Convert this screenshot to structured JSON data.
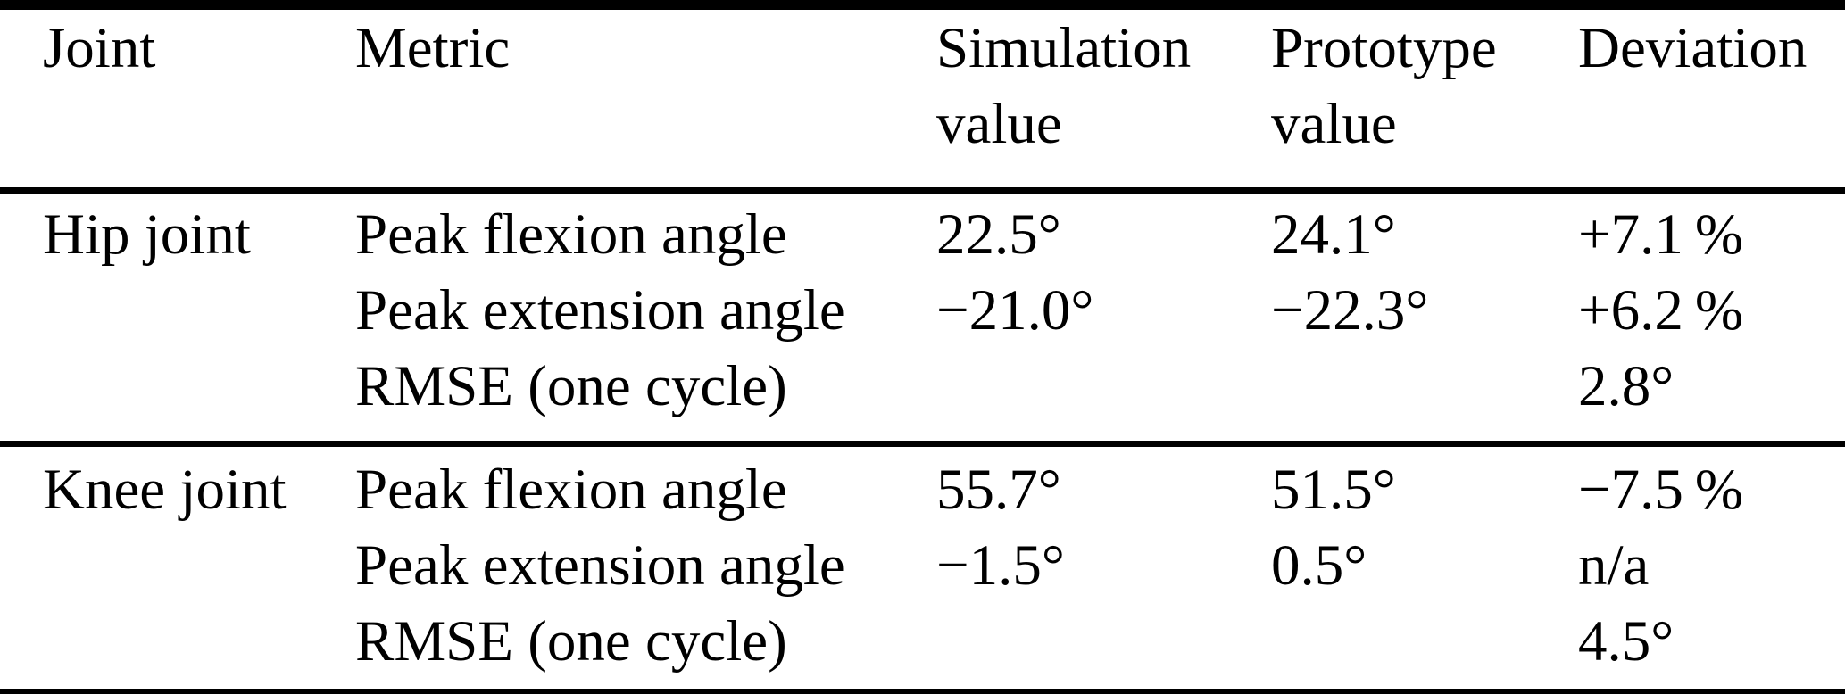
{
  "table": {
    "colors": {
      "background": "#ffffff",
      "text": "#000000",
      "rule": "#000000"
    },
    "columns": {
      "joint": "Joint",
      "metric": "Metric",
      "simulation": "Simulation value",
      "prototype": "Prototype value",
      "deviation": "Deviation"
    },
    "sections": [
      {
        "joint": "Hip joint",
        "rows": [
          {
            "metric": "Peak flexion angle",
            "simulation": "22.5°",
            "prototype": "24.1°",
            "deviation": "+7.1 %"
          },
          {
            "metric": "Peak extension angle",
            "simulation": "−21.0°",
            "prototype": "−22.3°",
            "deviation": "+6.2 %"
          },
          {
            "metric": "RMSE (one cycle)",
            "simulation": "",
            "prototype": "",
            "deviation": "2.8°"
          }
        ]
      },
      {
        "joint": "Knee joint",
        "rows": [
          {
            "metric": "Peak flexion angle",
            "simulation": "55.7°",
            "prototype": "51.5°",
            "deviation": "−7.5 %"
          },
          {
            "metric": "Peak extension angle",
            "simulation": "−1.5°",
            "prototype": "0.5°",
            "deviation": "n/a"
          },
          {
            "metric": "RMSE (one cycle)",
            "simulation": "",
            "prototype": "",
            "deviation": "4.5°"
          }
        ]
      }
    ]
  }
}
